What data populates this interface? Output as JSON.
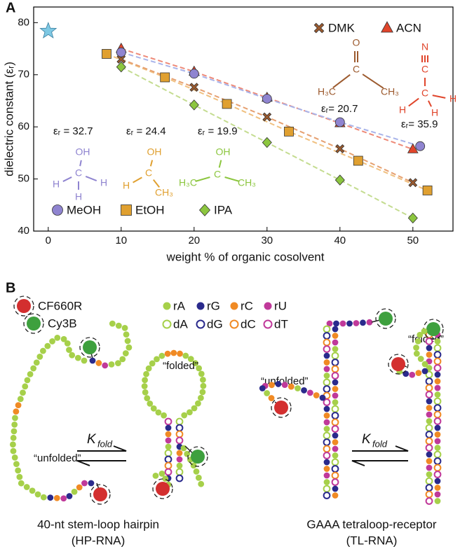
{
  "chart_data": {
    "type": "scatter",
    "panel_label": "A",
    "xlabel": "weight % of organic cosolvent",
    "ylabel": "dielectric constant (εᵣ)",
    "xlim": [
      -2,
      55.5
    ],
    "ylim": [
      40,
      83
    ],
    "xticks": [
      0,
      10,
      20,
      30,
      40,
      50
    ],
    "yticks": [
      40,
      50,
      60,
      70,
      80
    ],
    "reference": {
      "x": 0,
      "value": 78.4,
      "color": "#7ec8e3"
    },
    "series": [
      {
        "name": "DMK",
        "color": "#9c5a2e",
        "line_color": "#e6a070",
        "marker": "x",
        "x": [
          10,
          20,
          30,
          40,
          50
        ],
        "values": [
          73,
          67.6,
          61.9,
          55.8,
          49.3
        ],
        "epsilon": "εᵣ= 20.7",
        "structure": [
          "O",
          "C",
          "H₃C",
          "CH₃"
        ]
      },
      {
        "name": "ACN",
        "color": "#e0452b",
        "line_color": "#ee8a78",
        "marker": "triangle",
        "x": [
          10,
          20,
          30,
          40,
          50
        ],
        "values": [
          75,
          70.6,
          65.6,
          60.7,
          55.7
        ],
        "epsilon": "εᵣ= 35.9",
        "structure": [
          "N",
          "C",
          "C",
          "H",
          "H",
          "H"
        ]
      },
      {
        "name": "MeOH",
        "color": "#8f84d0",
        "line_color": "#a9b4ea",
        "marker": "circle",
        "x": [
          10,
          20,
          30,
          40,
          51
        ],
        "values": [
          74.3,
          70.2,
          65.4,
          60.9,
          56.3
        ],
        "epsilon": "εᵣ = 32.7",
        "structure": [
          "OH",
          "C",
          "H",
          "H",
          "H"
        ]
      },
      {
        "name": "EtOH",
        "color": "#e0a030",
        "line_color": "#f0c080",
        "marker": "square",
        "x": [
          8,
          16,
          24.5,
          33,
          42.5,
          52
        ],
        "values": [
          74,
          69.5,
          64.4,
          59.1,
          53.5,
          47.8
        ],
        "epsilon": "εᵣ = 24.4",
        "structure": [
          "OH",
          "C",
          "H",
          "CH₃"
        ]
      },
      {
        "name": "IPA",
        "color": "#8cc63f",
        "line_color": "#c4dc90",
        "marker": "diamond",
        "x": [
          10,
          20,
          30,
          40,
          50
        ],
        "values": [
          71.5,
          64.2,
          57,
          49.8,
          42.5
        ],
        "epsilon": "εᵣ = 19.9",
        "structure": [
          "OH",
          "C",
          "H₃C",
          "CH₃"
        ]
      }
    ]
  },
  "diagram": {
    "label": "B",
    "dyes": [
      {
        "name": "CF660R",
        "color": "#d32f2f"
      },
      {
        "name": "Cy3B",
        "color": "#3ea03e"
      }
    ],
    "nucleotides": [
      {
        "name": "rA",
        "color": "#a6d04a",
        "filled": true
      },
      {
        "name": "rG",
        "color": "#2a2a8c",
        "filled": true
      },
      {
        "name": "rC",
        "color": "#f08a24",
        "filled": true
      },
      {
        "name": "rU",
        "color": "#c0399a",
        "filled": true
      },
      {
        "name": "dA",
        "color": "#a6d04a",
        "filled": false
      },
      {
        "name": "dG",
        "color": "#2a2a8c",
        "filled": false
      },
      {
        "name": "dC",
        "color": "#f08a24",
        "filled": false
      },
      {
        "name": "dT",
        "color": "#c0399a",
        "filled": false
      }
    ],
    "folded": "“folded”",
    "unfolded": "“unfolded”",
    "k": "K",
    "k_sub": "fold",
    "constructs": [
      {
        "name": "40-nt stem-loop hairpin",
        "abbr": "(HP-RNA)"
      },
      {
        "name": "GAAA tetraloop-receptor",
        "abbr": "(TL-RNA)"
      }
    ]
  }
}
